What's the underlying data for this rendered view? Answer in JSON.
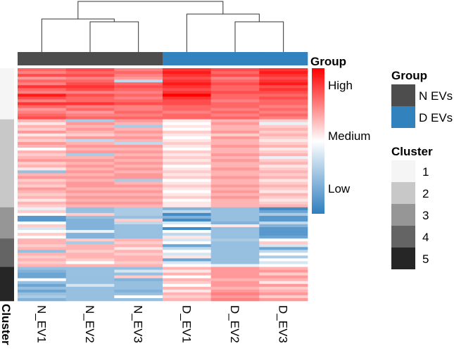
{
  "chart_data": {
    "type": "heatmap",
    "columns": [
      "N_EV1",
      "N_EV2",
      "N_EV3",
      "D_EV1",
      "D_EV2",
      "D_EV3"
    ],
    "column_groups": [
      "N EVs",
      "N EVs",
      "N EVs",
      "D EVs",
      "D EVs",
      "D EVs"
    ],
    "value_range": [
      -1,
      1
    ],
    "colorbar": {
      "title": "Group",
      "labels": {
        "high": "High",
        "medium": "Medium",
        "low": "Low"
      },
      "colors": {
        "high": "#FF0000",
        "medium": "#FFFFFF",
        "low": "#2E7EBF"
      }
    },
    "group_legend": {
      "title": "Group",
      "items": [
        {
          "label": "N EVs",
          "color": "#4D4D4D"
        },
        {
          "label": "D EVs",
          "color": "#3182BD"
        }
      ]
    },
    "cluster_legend": {
      "title": "Cluster",
      "items": [
        {
          "label": "1",
          "color": "#F5F5F5"
        },
        {
          "label": "2",
          "color": "#C8C8C8"
        },
        {
          "label": "3",
          "color": "#969696"
        },
        {
          "label": "4",
          "color": "#646464"
        },
        {
          "label": "5",
          "color": "#262626"
        }
      ]
    },
    "row_annotation_label": "Cluster",
    "dendrogram": {
      "merges": [
        [
          "N_EV2",
          "N_EV3"
        ],
        [
          "N_EV1",
          "N_EV2+N_EV3"
        ],
        [
          "D_EV2",
          "D_EV3"
        ],
        [
          "D_EV1",
          "D_EV2+D_EV3"
        ],
        [
          "N",
          "D"
        ]
      ]
    },
    "clusters": [
      {
        "cluster": "1",
        "rows": [
          [
            0.6,
            0.7,
            0.5,
            0.8,
            0.7,
            0.8
          ],
          [
            0.5,
            0.6,
            0.6,
            0.9,
            0.6,
            0.9
          ],
          [
            0.7,
            0.7,
            0.5,
            0.8,
            0.7,
            0.8
          ],
          [
            0.4,
            0.5,
            0.4,
            0.7,
            0.5,
            0.7
          ],
          [
            0.6,
            0.6,
            -0.3,
            0.8,
            0.6,
            0.8
          ],
          [
            0.5,
            0.7,
            0.6,
            0.9,
            0.7,
            0.9
          ],
          [
            0.8,
            0.8,
            0.7,
            0.8,
            0.6,
            0.7
          ],
          [
            0.6,
            0.7,
            0.6,
            0.7,
            0.6,
            0.8
          ],
          [
            0.5,
            0.5,
            0.5,
            0.8,
            0.7,
            0.7
          ],
          [
            0.9,
            0.7,
            0.6,
            1.0,
            0.6,
            0.6
          ],
          [
            0.7,
            0.6,
            0.5,
            0.8,
            0.6,
            0.7
          ],
          [
            0.5,
            0.6,
            0.6,
            0.7,
            0.5,
            0.6
          ],
          [
            0.8,
            0.8,
            0.7,
            0.7,
            0.6,
            0.6
          ],
          [
            0.6,
            0.5,
            0.5,
            0.6,
            0.6,
            0.5
          ],
          [
            0.4,
            0.6,
            0.5,
            0.6,
            0.5,
            0.6
          ],
          [
            0.5,
            0.4,
            0.6,
            0.5,
            0.6,
            0.5
          ],
          [
            0.6,
            0.5,
            0.5,
            0.6,
            0.5,
            0.6
          ],
          [
            0.7,
            0.6,
            0.6,
            0.6,
            0.6,
            0.5
          ]
        ]
      },
      {
        "cluster": "2",
        "rows": [
          [
            0.3,
            -0.4,
            0.4,
            0.1,
            0.3,
            0.2
          ],
          [
            0.1,
            0.4,
            0.3,
            0.0,
            0.4,
            -0.1
          ],
          [
            0.3,
            0.3,
            -0.4,
            0.1,
            0.3,
            0.2
          ],
          [
            0.2,
            0.4,
            0.3,
            0.0,
            0.3,
            0.3
          ],
          [
            0.4,
            0.3,
            0.4,
            0.2,
            0.4,
            0.2
          ],
          [
            0.1,
            0.2,
            0.3,
            0.1,
            0.2,
            0.3
          ],
          [
            0.3,
            0.4,
            0.4,
            0.0,
            0.4,
            0.2
          ],
          [
            0.2,
            -0.3,
            0.3,
            0.1,
            0.3,
            0.1
          ],
          [
            0.4,
            0.3,
            -0.3,
            0.2,
            0.3,
            0.2
          ],
          [
            0.3,
            0.4,
            0.4,
            0.1,
            0.4,
            0.3
          ],
          [
            0.0,
            0.3,
            0.3,
            0.0,
            0.3,
            0.1
          ],
          [
            0.3,
            0.4,
            0.4,
            0.2,
            0.3,
            0.2
          ],
          [
            0.2,
            -0.4,
            0.3,
            0.1,
            0.4,
            0.3
          ],
          [
            0.3,
            0.3,
            0.4,
            0.2,
            0.3,
            -0.1
          ],
          [
            0.4,
            0.4,
            0.3,
            0.1,
            0.4,
            0.2
          ],
          [
            0.2,
            0.3,
            0.4,
            0.2,
            0.3,
            0.3
          ],
          [
            0.3,
            0.4,
            0.3,
            0.0,
            0.3,
            0.1
          ],
          [
            0.1,
            0.3,
            0.4,
            0.1,
            0.4,
            0.2
          ],
          [
            -0.5,
            0.4,
            0.3,
            0.2,
            0.3,
            0.3
          ],
          [
            0.3,
            0.3,
            0.4,
            0.1,
            0.3,
            0.2
          ],
          [
            0.4,
            0.4,
            0.4,
            0.2,
            0.4,
            0.3
          ],
          [
            0.2,
            0.3,
            -0.4,
            0.0,
            0.3,
            0.1
          ],
          [
            0.3,
            0.4,
            0.3,
            0.1,
            0.3,
            0.2
          ],
          [
            0.2,
            0.4,
            0.4,
            0.2,
            0.4,
            0.3
          ],
          [
            0.4,
            0.3,
            0.3,
            0.1,
            0.3,
            0.2
          ],
          [
            0.3,
            0.4,
            0.4,
            0.0,
            0.4,
            0.1
          ],
          [
            0.2,
            0.3,
            0.3,
            0.1,
            0.3,
            0.3
          ],
          [
            0.3,
            0.4,
            0.4,
            0.2,
            0.4,
            0.2
          ],
          [
            0.1,
            0.3,
            0.3,
            0.0,
            0.3,
            0.1
          ],
          [
            0.3,
            0.4,
            0.4,
            0.1,
            0.3,
            0.2
          ],
          [
            0.2,
            0.3,
            0.3,
            0.1,
            0.3,
            0.3
          ]
        ]
      },
      {
        "cluster": "3",
        "rows": [
          [
            -0.1,
            -0.5,
            -0.4,
            -0.6,
            -0.5,
            -0.9
          ],
          [
            0.2,
            -0.5,
            -0.4,
            -0.3,
            -0.5,
            -0.7
          ],
          [
            0.0,
            0.2,
            -0.4,
            -0.9,
            -0.5,
            -0.4
          ],
          [
            -0.8,
            -0.5,
            -0.5,
            -0.6,
            -0.5,
            -0.8
          ],
          [
            -0.8,
            -0.6,
            0.2,
            -0.9,
            -0.5,
            -0.8
          ],
          [
            0.0,
            -0.6,
            -0.3,
            -0.2,
            -0.6,
            -0.3
          ],
          [
            0.2,
            -0.6,
            -0.5,
            0.0,
            0.1,
            -0.6
          ],
          [
            -0.2,
            -0.6,
            -0.5,
            -0.9,
            -0.5,
            -0.8
          ],
          [
            0.0,
            -0.1,
            -0.5,
            0.0,
            -0.5,
            -0.8
          ],
          [
            0.2,
            -0.6,
            -0.5,
            -0.3,
            -0.5,
            -0.8
          ],
          [
            0.0,
            -0.6,
            -0.5,
            0.1,
            -0.5,
            -0.7
          ]
        ]
      },
      {
        "cluster": "4",
        "rows": [
          [
            0.3,
            0.2,
            0.3,
            -0.2,
            -0.4,
            0.0
          ],
          [
            0.3,
            -0.4,
            0.2,
            0.0,
            -0.5,
            0.2
          ],
          [
            0.2,
            0.3,
            0.3,
            -0.7,
            -0.5,
            -0.2
          ],
          [
            0.3,
            0.3,
            0.1,
            -0.3,
            -0.5,
            -0.7
          ],
          [
            -0.5,
            0.2,
            0.3,
            0.0,
            -0.5,
            -0.3
          ],
          [
            0.3,
            0.3,
            0.2,
            -0.2,
            -0.5,
            0.0
          ],
          [
            0.2,
            0.3,
            0.3,
            0.1,
            -0.5,
            -0.4
          ],
          [
            0.3,
            0.2,
            0.3,
            -0.7,
            -0.5,
            0.0
          ],
          [
            0.2,
            0.0,
            0.2,
            -0.2,
            -0.5,
            -0.2
          ],
          [
            0.3,
            0.3,
            0.3,
            0.0,
            -0.1,
            0.0
          ]
        ]
      },
      {
        "cluster": "5",
        "rows": [
          [
            -0.5,
            -0.5,
            -0.5,
            0.3,
            0.4,
            0.3
          ],
          [
            -0.6,
            -0.5,
            -0.2,
            0.1,
            0.4,
            0.4
          ],
          [
            -0.7,
            -0.5,
            -0.5,
            0.3,
            0.4,
            0.2
          ],
          [
            -0.7,
            -0.5,
            0.2,
            0.0,
            0.4,
            0.4
          ],
          [
            0.0,
            -0.5,
            -0.6,
            0.3,
            0.3,
            0.3
          ],
          [
            -0.5,
            -0.5,
            -0.5,
            0.2,
            0.4,
            0.1
          ],
          [
            -0.7,
            -0.2,
            -0.5,
            0.0,
            0.4,
            0.4
          ],
          [
            -0.5,
            -0.5,
            -0.5,
            0.3,
            0.3,
            0.2
          ],
          [
            -0.7,
            -0.5,
            -0.6,
            0.1,
            0.4,
            0.3
          ],
          [
            -0.5,
            -0.5,
            -0.5,
            0.3,
            0.5,
            0.4
          ],
          [
            -0.4,
            -0.5,
            0.0,
            0.2,
            0.4,
            0.2
          ],
          [
            -0.6,
            -0.5,
            -0.5,
            0.3,
            0.5,
            0.4
          ]
        ]
      }
    ]
  }
}
